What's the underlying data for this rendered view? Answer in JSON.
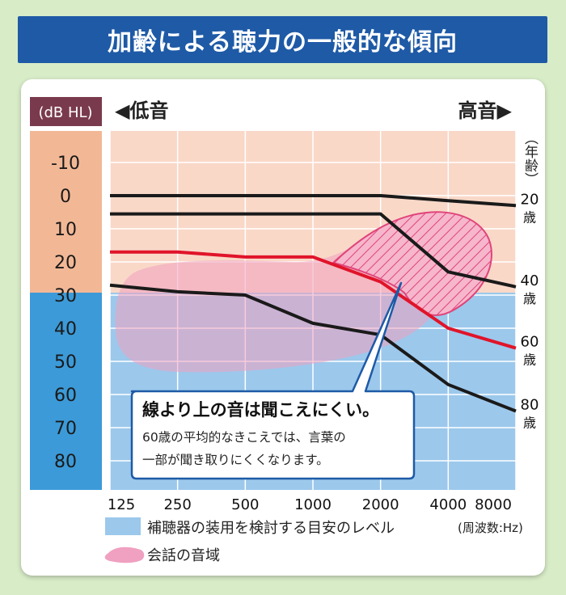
{
  "title": "加齢による聴力の一般的な傾向",
  "unit_label": "(dB HL)",
  "low_label": "◀低音",
  "high_label": "高音▶",
  "age_axis_label": "（年齢）",
  "freq_unit": "(周波数:Hz)",
  "callout": {
    "headline": "線より上の音は聞こえにくい。",
    "line1": "60歳の平均的なきこえでは、言葉の",
    "line2": "一部が聞き取りにくくなります。"
  },
  "legend": {
    "hearing_aid": "補聴器の装用を検討する目安のレベル",
    "speech": "会話の音域"
  },
  "colors": {
    "dbhl_label_bg": "#7a3a4e",
    "upper_zone": "#f9d8c8",
    "upper_zone_axis": "#f2b896",
    "lower_zone": "#9cc8ec",
    "lower_zone_axis": "#3c9ad8",
    "speech_area": "#f0a0c0",
    "hatch": "#e0447a",
    "line_normal": "#1a1a1a",
    "line_60": "#e0142a",
    "title_bar": "#1e5aa6"
  },
  "chart_data": {
    "type": "line",
    "x": [
      125,
      250,
      500,
      1000,
      2000,
      4000,
      8000
    ],
    "x_tick_labels": [
      "125",
      "250",
      "500",
      "1000",
      "2000",
      "4000",
      "8000"
    ],
    "x_scale": "log2",
    "y_tick_labels": [
      "-10",
      "0",
      "10",
      "20",
      "30",
      "40",
      "50",
      "60",
      "70",
      "80"
    ],
    "ylim": [
      -15,
      85
    ],
    "y_inverted": true,
    "hearing_aid_threshold": 30,
    "series": [
      {
        "name": "20歳",
        "values": [
          0,
          0,
          0,
          0,
          0,
          1.5,
          3
        ],
        "color": "#1a1a1a"
      },
      {
        "name": "40歳",
        "values": [
          5.5,
          5.5,
          5.5,
          5.5,
          5.5,
          23,
          27.5
        ],
        "color": "#1a1a1a"
      },
      {
        "name": "60歳",
        "values": [
          17,
          17,
          18.5,
          18.5,
          26,
          40,
          46
        ],
        "color": "#e0142a"
      },
      {
        "name": "80歳",
        "values": [
          27,
          29,
          30,
          38.5,
          42,
          57,
          65
        ],
        "color": "#1a1a1a"
      }
    ]
  }
}
